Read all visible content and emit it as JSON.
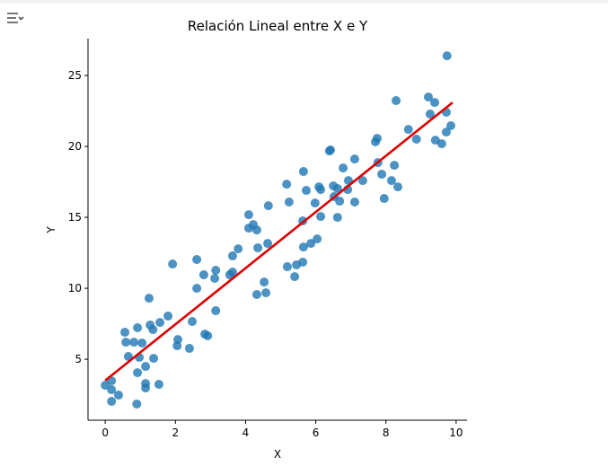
{
  "toolbar": {
    "icon": "output-options-icon"
  },
  "chart_data": {
    "type": "scatter",
    "title": "Relación Lineal entre X e Y",
    "xlabel": "X",
    "ylabel": "Y",
    "xlim": [
      -0.49,
      10.31
    ],
    "ylim": [
      0.7,
      27.6
    ],
    "xticks": [
      0,
      2,
      4,
      6,
      8,
      10
    ],
    "yticks": [
      5,
      10,
      15,
      20,
      25
    ],
    "grid": false,
    "point_color": "#1f77b4",
    "line_color": "#e00000",
    "points": [
      [
        0.0,
        3.16
      ],
      [
        0.18,
        3.48
      ],
      [
        0.18,
        2.85
      ],
      [
        0.18,
        2.03
      ],
      [
        0.38,
        2.47
      ],
      [
        0.56,
        6.9
      ],
      [
        0.59,
        6.2
      ],
      [
        0.66,
        5.19
      ],
      [
        0.82,
        6.2
      ],
      [
        0.92,
        7.22
      ],
      [
        0.92,
        4.05
      ],
      [
        0.9,
        1.84
      ],
      [
        0.97,
        5.13
      ],
      [
        1.05,
        6.14
      ],
      [
        1.15,
        4.49
      ],
      [
        1.15,
        3.29
      ],
      [
        1.15,
        2.97
      ],
      [
        1.25,
        9.3
      ],
      [
        1.28,
        7.41
      ],
      [
        1.36,
        7.09
      ],
      [
        1.38,
        5.06
      ],
      [
        1.53,
        3.23
      ],
      [
        1.56,
        7.59
      ],
      [
        1.79,
        8.04
      ],
      [
        1.92,
        11.71
      ],
      [
        2.05,
        5.95
      ],
      [
        2.07,
        6.39
      ],
      [
        2.4,
        5.76
      ],
      [
        2.48,
        7.66
      ],
      [
        2.61,
        12.03
      ],
      [
        2.61,
        10.0
      ],
      [
        2.81,
        10.95
      ],
      [
        2.84,
        6.77
      ],
      [
        2.92,
        6.65
      ],
      [
        3.12,
        10.7
      ],
      [
        3.15,
        11.27
      ],
      [
        3.15,
        8.42
      ],
      [
        3.55,
        10.95
      ],
      [
        3.63,
        11.14
      ],
      [
        3.63,
        12.28
      ],
      [
        3.79,
        12.78
      ],
      [
        4.09,
        15.19
      ],
      [
        4.09,
        14.24
      ],
      [
        4.22,
        14.49
      ],
      [
        4.32,
        14.11
      ],
      [
        4.35,
        12.85
      ],
      [
        4.32,
        9.56
      ],
      [
        4.53,
        10.44
      ],
      [
        4.58,
        9.68
      ],
      [
        4.63,
        13.16
      ],
      [
        4.65,
        15.82
      ],
      [
        5.17,
        17.34
      ],
      [
        5.19,
        11.52
      ],
      [
        5.24,
        16.08
      ],
      [
        5.4,
        10.82
      ],
      [
        5.45,
        11.65
      ],
      [
        5.63,
        11.84
      ],
      [
        5.63,
        14.75
      ],
      [
        5.65,
        18.23
      ],
      [
        5.65,
        12.91
      ],
      [
        5.73,
        16.9
      ],
      [
        5.86,
        13.16
      ],
      [
        5.98,
        16.01
      ],
      [
        6.04,
        13.48
      ],
      [
        6.09,
        17.15
      ],
      [
        6.14,
        16.96
      ],
      [
        6.14,
        15.06
      ],
      [
        6.39,
        19.68
      ],
      [
        6.42,
        19.75
      ],
      [
        6.5,
        17.22
      ],
      [
        6.52,
        16.46
      ],
      [
        6.62,
        17.03
      ],
      [
        6.62,
        15.0
      ],
      [
        6.68,
        16.14
      ],
      [
        6.78,
        18.48
      ],
      [
        6.91,
        16.96
      ],
      [
        6.93,
        17.59
      ],
      [
        7.11,
        19.11
      ],
      [
        7.11,
        16.08
      ],
      [
        7.34,
        17.59
      ],
      [
        7.7,
        20.32
      ],
      [
        7.75,
        20.57
      ],
      [
        7.77,
        18.86
      ],
      [
        7.88,
        18.04
      ],
      [
        7.95,
        16.33
      ],
      [
        8.16,
        17.59
      ],
      [
        8.24,
        18.67
      ],
      [
        8.29,
        23.23
      ],
      [
        8.34,
        17.15
      ],
      [
        8.64,
        21.2
      ],
      [
        8.87,
        20.51
      ],
      [
        9.21,
        23.48
      ],
      [
        9.26,
        22.28
      ],
      [
        9.39,
        23.1
      ],
      [
        9.41,
        20.44
      ],
      [
        9.59,
        20.19
      ],
      [
        9.72,
        22.41
      ],
      [
        9.72,
        21.01
      ],
      [
        9.74,
        26.39
      ],
      [
        9.85,
        21.46
      ]
    ],
    "regression_line": {
      "x": [
        0.0,
        9.9
      ],
      "y": [
        3.5,
        23.1
      ]
    }
  }
}
